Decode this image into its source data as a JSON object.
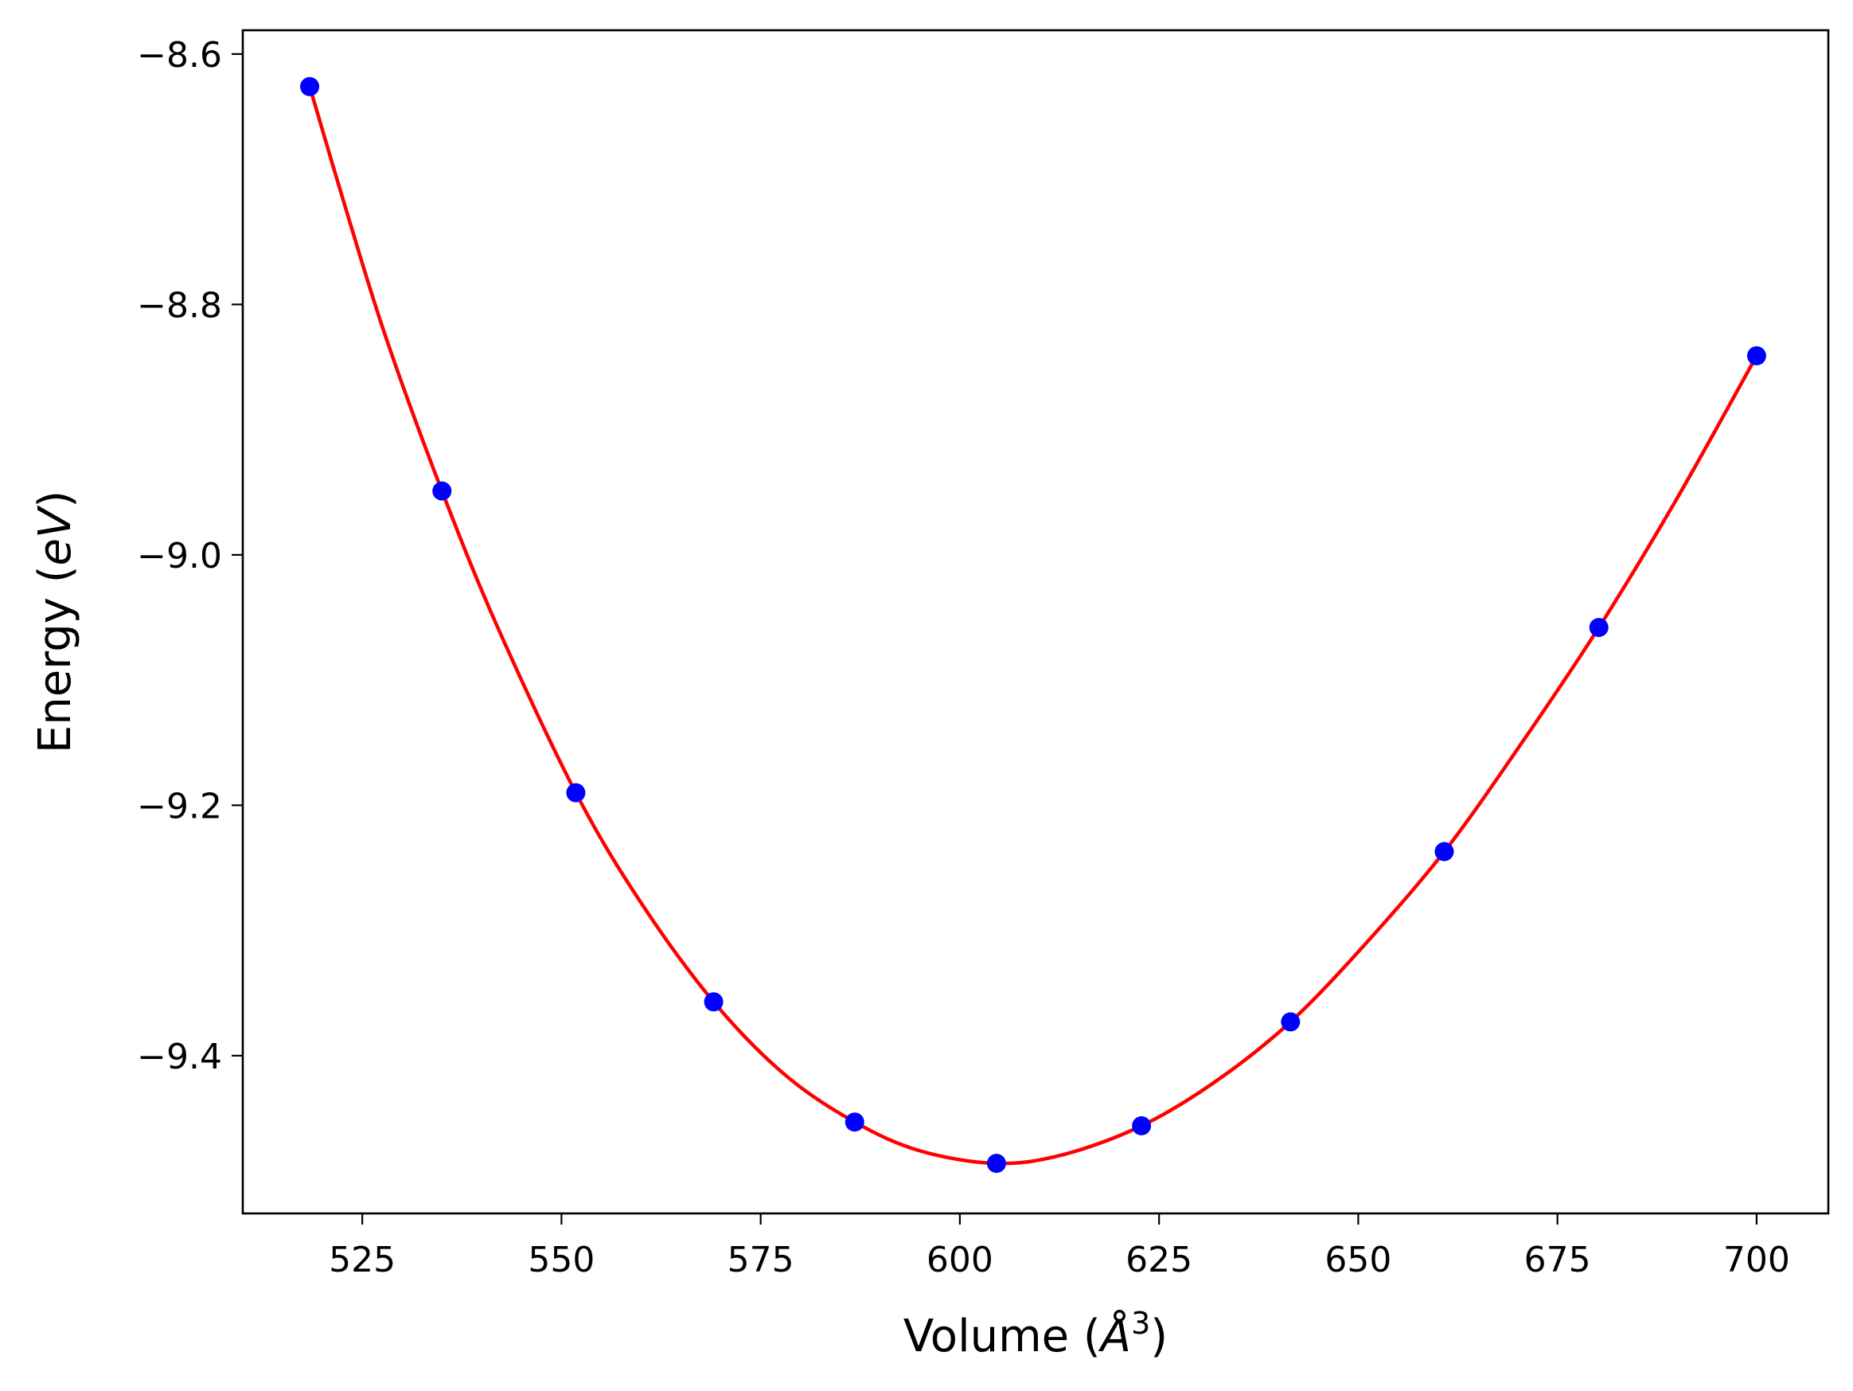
{
  "chart_data": {
    "type": "scatter",
    "title": "",
    "xlabel": "Volume",
    "xlabel_unit": "Å",
    "xlabel_exponent": "3",
    "ylabel": "Energy",
    "ylabel_unit": "eV",
    "xlim": [
      510,
      709
    ],
    "ylim": [
      -9.526,
      -8.581
    ],
    "xticks": [
      525,
      550,
      575,
      600,
      625,
      650,
      675,
      700
    ],
    "xtick_labels": [
      "525",
      "550",
      "575",
      "600",
      "625",
      "650",
      "675",
      "700"
    ],
    "yticks": [
      -8.6,
      -8.8,
      -9.0,
      -9.2,
      -9.4
    ],
    "ytick_labels": [
      "−8.6",
      "−8.8",
      "−9.0",
      "−9.2",
      "−9.4"
    ],
    "grid": false,
    "series": [
      {
        "kind": "points",
        "color": "#0000ff",
        "x": [
          518.4,
          535.0,
          551.8,
          569.1,
          586.8,
          604.6,
          622.8,
          641.5,
          660.8,
          680.2,
          700.0
        ],
        "y": [
          -8.626,
          -8.949,
          -9.19,
          -9.357,
          -9.453,
          -9.486,
          -9.456,
          -9.373,
          -9.237,
          -9.058,
          -8.841
        ]
      },
      {
        "kind": "fit-curve",
        "color": "#ff0000",
        "x": [
          518.4,
          523.0,
          528.0,
          535.0,
          542.0,
          551.8,
          560.0,
          569.1,
          578.0,
          586.8,
          595.0,
          604.6,
          613.0,
          622.8,
          632.0,
          641.5,
          651.0,
          660.8,
          670.0,
          680.2,
          690.0,
          700.0
        ],
        "y": [
          -8.626,
          -8.725,
          -8.827,
          -8.949,
          -9.058,
          -9.19,
          -9.278,
          -9.357,
          -9.415,
          -9.453,
          -9.476,
          -9.486,
          -9.479,
          -9.456,
          -9.421,
          -9.373,
          -9.31,
          -9.237,
          -9.155,
          -9.058,
          -8.955,
          -8.841
        ]
      }
    ]
  }
}
